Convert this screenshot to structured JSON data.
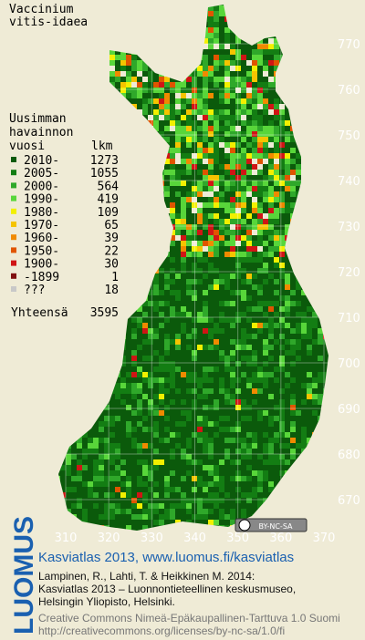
{
  "title": [
    "Vaccinium",
    "vitis-idaea"
  ],
  "legend": {
    "heading": [
      "Uusimman",
      "havainnon",
      "vuosi"
    ],
    "count_heading": "lkm",
    "entries": [
      {
        "label": "2010-",
        "count": 1273,
        "color": "#0b5a0b"
      },
      {
        "label": "2005-",
        "count": 1055,
        "color": "#137d13"
      },
      {
        "label": "2000-",
        "count": 564,
        "color": "#2fa82a"
      },
      {
        "label": "1990-",
        "count": 419,
        "color": "#58d63a"
      },
      {
        "label": "1980-",
        "count": 109,
        "color": "#f2f000"
      },
      {
        "label": "1970-",
        "count": 65,
        "color": "#f5c400"
      },
      {
        "label": "1960-",
        "count": 39,
        "color": "#f08a00"
      },
      {
        "label": "1950-",
        "count": 22,
        "color": "#e05500"
      },
      {
        "label": "1900-",
        "count": 30,
        "color": "#d01515"
      },
      {
        "label": "-1899",
        "count": 1,
        "color": "#801010"
      },
      {
        "label": "???",
        "count": 18,
        "color": "#c8c8c8"
      }
    ],
    "total_label": "Yhteensä",
    "total": 3595
  },
  "map": {
    "yticks": [
      770,
      760,
      750,
      740,
      730,
      720,
      710,
      700,
      690,
      680,
      670
    ],
    "xticks": [
      310,
      320,
      330,
      340,
      350,
      360,
      370
    ]
  },
  "license_badge": "BY-NC-SA",
  "logo": "LUOMUS",
  "footer": {
    "title": "Kasviatlas 2013, www.luomus.fi/kasviatlas",
    "citation": [
      "Lampinen, R., Lahti, T. & Heikkinen M. 2014:",
      "Kasviatlas 2013 – Luonnontieteellinen keskusmuseo,",
      "Helsingin Yliopisto, Helsinki."
    ],
    "license": [
      "Creative Commons Nimeä-Epäkaupallinen-Tarttuva 1.0 Suomi",
      "http://creativecommons.org/licenses/by-nc-sa/1.0/fi"
    ]
  }
}
